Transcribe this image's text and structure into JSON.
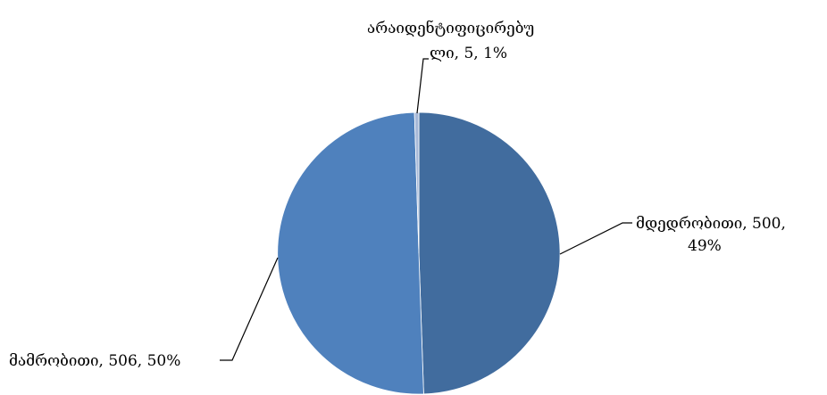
{
  "chart_data": {
    "type": "pie",
    "title": "",
    "start_angle_deg": 0,
    "direction": "clockwise",
    "slices": [
      {
        "category": "მდედრობითი",
        "value": 500,
        "percent_label": "49%",
        "label_lines": [
          "მდედრობითი, 500,",
          "49%"
        ],
        "color": "#416C9E"
      },
      {
        "category": "მამრობითი",
        "value": 506,
        "percent_label": "50%",
        "label_lines": [
          "მამრობითი, 506, 50%"
        ],
        "color": "#4F81BD"
      },
      {
        "category": "არაიდენტიფიცირებული",
        "value": 5,
        "percent_label": "1%",
        "label_lines": [
          "არაიდენტიფიცირებუ",
          "ლი, 5, 1%"
        ],
        "color": "#A7B9D8"
      }
    ],
    "legend": "none",
    "data_labels": "outside with leader lines"
  }
}
